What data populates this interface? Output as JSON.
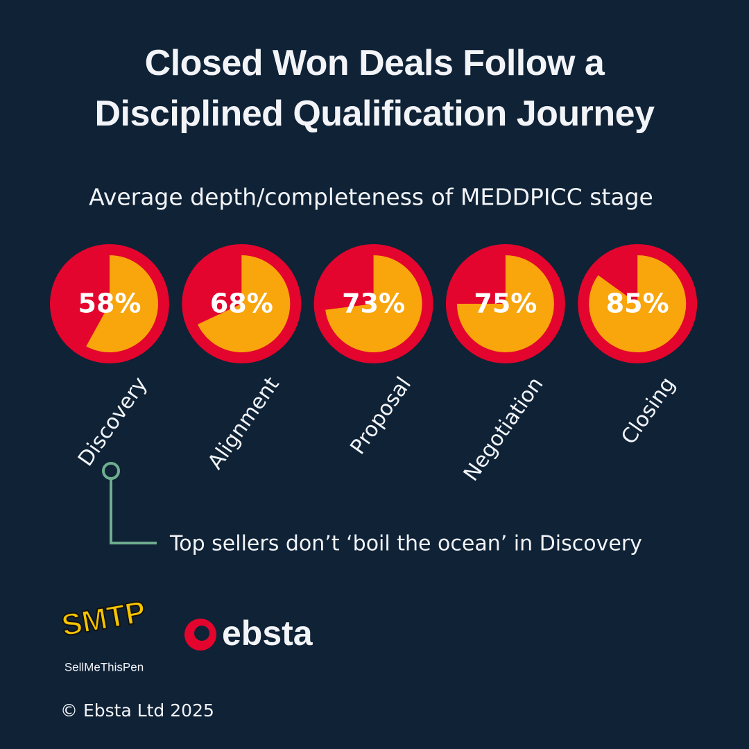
{
  "chart_data": {
    "type": "pie",
    "title": "Closed Won Deals Follow a Disciplined Qualification Journey",
    "subtitle": "Average depth/completeness of MEDDPICC stage",
    "categories": [
      "Discovery",
      "Alignment",
      "Proposal",
      "Negotiation",
      "Closing"
    ],
    "values": [
      58,
      68,
      73,
      75,
      85
    ],
    "value_labels": [
      "58%",
      "68%",
      "73%",
      "75%",
      "85%"
    ],
    "color": "#f9a50c",
    "ring_color": "#e3052d",
    "annotation": "Top sellers don’t ‘boil the ocean’ in Discovery"
  },
  "logos": {
    "smtp_mark": "SMTP",
    "smtp_name": "SellMeThisPen",
    "ebsta": "ebsta"
  },
  "footer": "© Ebsta Ltd 2025"
}
